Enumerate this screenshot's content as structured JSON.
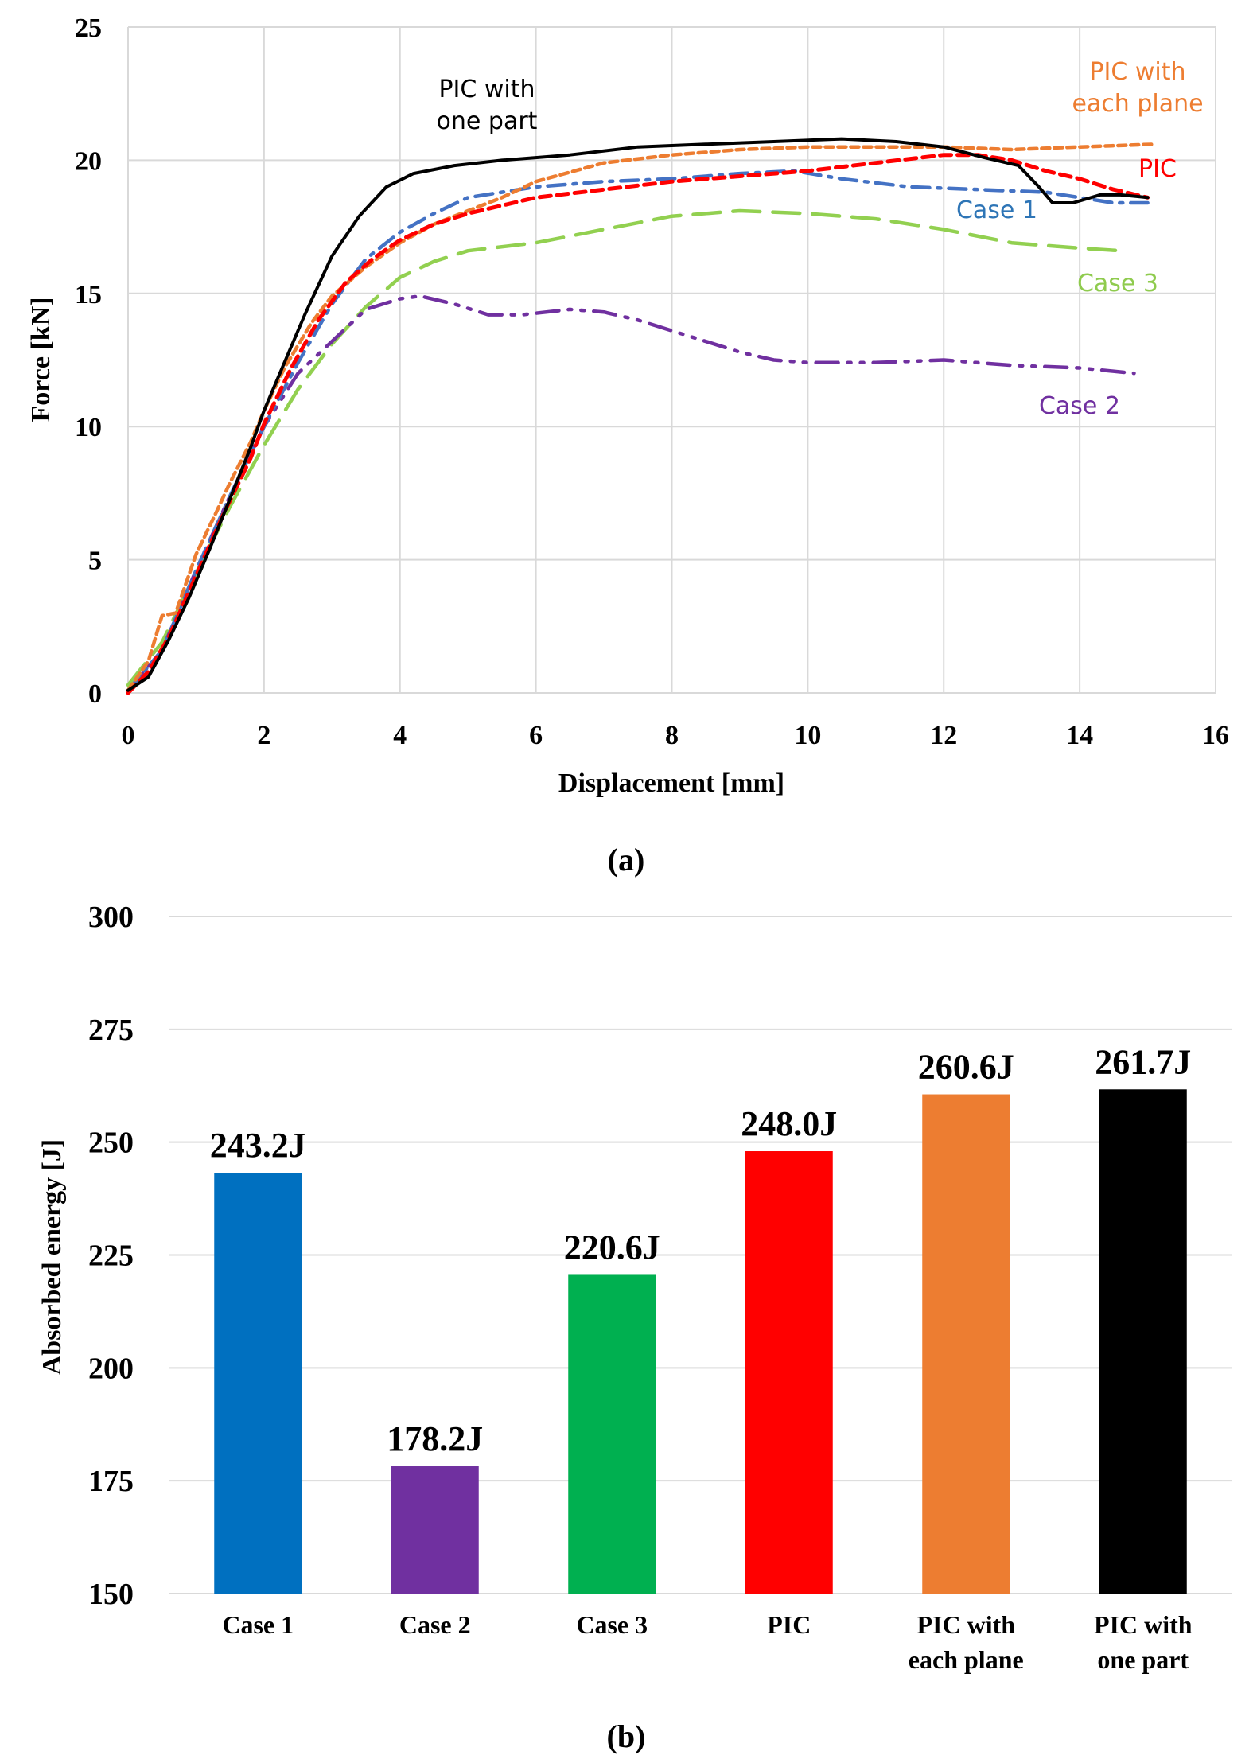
{
  "chart_data": [
    {
      "id": "a",
      "type": "line",
      "caption": "(a)",
      "xlabel": "Displacement [mm]",
      "ylabel": "Force [kN]",
      "xlim": [
        0,
        16
      ],
      "ylim": [
        0,
        25
      ],
      "xticks": [
        0,
        2,
        4,
        6,
        8,
        10,
        12,
        14,
        16
      ],
      "yticks": [
        0,
        5,
        10,
        15,
        20,
        25
      ],
      "grid": true,
      "legend": "inline labels",
      "series": [
        {
          "name": "PIC with one part",
          "label_lines": [
            "PIC with",
            "one part"
          ],
          "color": "#000000",
          "style": "solid",
          "points": [
            [
              0,
              0.1
            ],
            [
              0.3,
              0.6
            ],
            [
              0.6,
              2.0
            ],
            [
              0.9,
              3.6
            ],
            [
              1.2,
              5.4
            ],
            [
              1.5,
              7.3
            ],
            [
              1.8,
              9.2
            ],
            [
              2.0,
              10.6
            ],
            [
              2.3,
              12.4
            ],
            [
              2.6,
              14.2
            ],
            [
              3.0,
              16.4
            ],
            [
              3.4,
              17.9
            ],
            [
              3.8,
              19.0
            ],
            [
              4.2,
              19.5
            ],
            [
              4.8,
              19.8
            ],
            [
              5.5,
              20.0
            ],
            [
              6.5,
              20.2
            ],
            [
              7.5,
              20.5
            ],
            [
              8.5,
              20.6
            ],
            [
              9.5,
              20.7
            ],
            [
              10.5,
              20.8
            ],
            [
              11.3,
              20.7
            ],
            [
              12.0,
              20.5
            ],
            [
              12.6,
              20.1
            ],
            [
              13.1,
              19.8
            ],
            [
              13.4,
              19.0
            ],
            [
              13.6,
              18.4
            ],
            [
              13.9,
              18.4
            ],
            [
              14.3,
              18.7
            ],
            [
              14.6,
              18.7
            ],
            [
              15.0,
              18.6
            ]
          ]
        },
        {
          "name": "PIC with each plane",
          "label_lines": [
            "PIC with",
            "each plane"
          ],
          "color": "#ED7D31",
          "style": "short-dash",
          "points": [
            [
              0,
              0.1
            ],
            [
              0.3,
              1.2
            ],
            [
              0.5,
              2.9
            ],
            [
              0.7,
              3.0
            ],
            [
              1.0,
              5.2
            ],
            [
              1.3,
              6.8
            ],
            [
              1.5,
              7.9
            ],
            [
              1.8,
              9.4
            ],
            [
              2.0,
              10.6
            ],
            [
              2.3,
              12.2
            ],
            [
              2.7,
              13.9
            ],
            [
              3.0,
              14.9
            ],
            [
              3.5,
              16.0
            ],
            [
              4.0,
              16.9
            ],
            [
              4.5,
              17.6
            ],
            [
              5.0,
              18.1
            ],
            [
              5.5,
              18.6
            ],
            [
              6.0,
              19.2
            ],
            [
              7.0,
              19.9
            ],
            [
              8.0,
              20.2
            ],
            [
              9.0,
              20.4
            ],
            [
              10.0,
              20.5
            ],
            [
              11.0,
              20.5
            ],
            [
              12.0,
              20.5
            ],
            [
              13.0,
              20.4
            ],
            [
              14.0,
              20.5
            ],
            [
              15.1,
              20.6
            ]
          ]
        },
        {
          "name": "PIC",
          "label_lines": [
            "PIC"
          ],
          "color": "#FF0000",
          "style": "dash",
          "points": [
            [
              0,
              0
            ],
            [
              0.3,
              0.8
            ],
            [
              0.6,
              2.1
            ],
            [
              1.0,
              4.4
            ],
            [
              1.4,
              6.7
            ],
            [
              1.8,
              8.8
            ],
            [
              2.0,
              10.1
            ],
            [
              2.4,
              12.2
            ],
            [
              2.8,
              14.0
            ],
            [
              3.2,
              15.4
            ],
            [
              3.6,
              16.3
            ],
            [
              4.0,
              17.0
            ],
            [
              4.5,
              17.6
            ],
            [
              5.0,
              18.0
            ],
            [
              6.0,
              18.6
            ],
            [
              7.0,
              18.9
            ],
            [
              8.0,
              19.2
            ],
            [
              9.0,
              19.4
            ],
            [
              10.0,
              19.6
            ],
            [
              11.0,
              19.9
            ],
            [
              12.0,
              20.2
            ],
            [
              12.5,
              20.2
            ],
            [
              13.0,
              20.0
            ],
            [
              13.5,
              19.6
            ],
            [
              14.0,
              19.3
            ],
            [
              14.5,
              18.9
            ],
            [
              15.0,
              18.6
            ]
          ]
        },
        {
          "name": "Case 1",
          "label_lines": [
            "Case 1"
          ],
          "color": "#4472C4",
          "label_color": "#2E75B6",
          "style": "dash-dot",
          "points": [
            [
              0,
              0.1
            ],
            [
              0.5,
              1.6
            ],
            [
              1.0,
              4.6
            ],
            [
              1.5,
              7.4
            ],
            [
              2.0,
              10.0
            ],
            [
              2.5,
              12.4
            ],
            [
              3.0,
              14.6
            ],
            [
              3.5,
              16.3
            ],
            [
              4.0,
              17.3
            ],
            [
              4.5,
              18.0
            ],
            [
              5.0,
              18.6
            ],
            [
              6.0,
              19.0
            ],
            [
              7.0,
              19.2
            ],
            [
              8.0,
              19.3
            ],
            [
              9.0,
              19.5
            ],
            [
              9.8,
              19.6
            ],
            [
              10.5,
              19.3
            ],
            [
              11.5,
              19.0
            ],
            [
              12.5,
              18.9
            ],
            [
              13.5,
              18.8
            ],
            [
              14.0,
              18.6
            ],
            [
              14.5,
              18.4
            ],
            [
              15.0,
              18.4
            ]
          ]
        },
        {
          "name": "Case 2",
          "label_lines": [
            "Case 2"
          ],
          "color": "#7030A0",
          "style": "dash-dot-dot",
          "points": [
            [
              0,
              0.1
            ],
            [
              0.5,
              1.6
            ],
            [
              1.0,
              4.6
            ],
            [
              1.5,
              7.4
            ],
            [
              2.0,
              10.0
            ],
            [
              2.5,
              12.0
            ],
            [
              3.0,
              13.2
            ],
            [
              3.5,
              14.4
            ],
            [
              4.0,
              14.8
            ],
            [
              4.3,
              14.9
            ],
            [
              4.8,
              14.6
            ],
            [
              5.3,
              14.2
            ],
            [
              5.8,
              14.2
            ],
            [
              6.5,
              14.4
            ],
            [
              7.0,
              14.3
            ],
            [
              7.5,
              14.0
            ],
            [
              8.0,
              13.6
            ],
            [
              8.5,
              13.2
            ],
            [
              9.0,
              12.8
            ],
            [
              9.5,
              12.5
            ],
            [
              10.0,
              12.4
            ],
            [
              11.0,
              12.4
            ],
            [
              12.0,
              12.5
            ],
            [
              13.0,
              12.3
            ],
            [
              14.0,
              12.2
            ],
            [
              14.8,
              12.0
            ]
          ]
        },
        {
          "name": "Case 3",
          "label_lines": [
            "Case 3"
          ],
          "color": "#92D050",
          "label_color": "#8FCB4E",
          "style": "long-dash",
          "points": [
            [
              0,
              0.3
            ],
            [
              0.5,
              1.9
            ],
            [
              1.0,
              4.5
            ],
            [
              1.5,
              7.0
            ],
            [
              2.0,
              9.3
            ],
            [
              2.5,
              11.4
            ],
            [
              3.0,
              13.1
            ],
            [
              3.5,
              14.5
            ],
            [
              4.0,
              15.6
            ],
            [
              4.5,
              16.2
            ],
            [
              5.0,
              16.6
            ],
            [
              6.0,
              16.9
            ],
            [
              7.0,
              17.4
            ],
            [
              8.0,
              17.9
            ],
            [
              9.0,
              18.1
            ],
            [
              10.0,
              18.0
            ],
            [
              11.0,
              17.8
            ],
            [
              12.0,
              17.4
            ],
            [
              13.0,
              16.9
            ],
            [
              14.0,
              16.7
            ],
            [
              14.6,
              16.6
            ]
          ]
        }
      ]
    },
    {
      "id": "b",
      "type": "bar",
      "caption": "(b)",
      "xlabel": "",
      "ylabel": "Absorbed energy [J]",
      "ylim": [
        150,
        300
      ],
      "yticks": [
        150,
        175,
        200,
        225,
        250,
        275,
        300
      ],
      "grid": true,
      "categories": [
        [
          "Case 1"
        ],
        [
          "Case 2"
        ],
        [
          "Case 3"
        ],
        [
          "PIC"
        ],
        [
          "PIC with",
          "each plane"
        ],
        [
          "PIC with",
          "one part"
        ]
      ],
      "values": [
        243.2,
        178.2,
        220.6,
        248.0,
        260.6,
        261.7
      ],
      "labels": [
        "243.2J",
        "178.2J",
        "220.6J",
        "248.0J",
        "260.6J",
        "261.7J"
      ],
      "colors": [
        "#0070C0",
        "#7030A0",
        "#00B050",
        "#FF0000",
        "#ED7D31",
        "#000000"
      ]
    }
  ]
}
